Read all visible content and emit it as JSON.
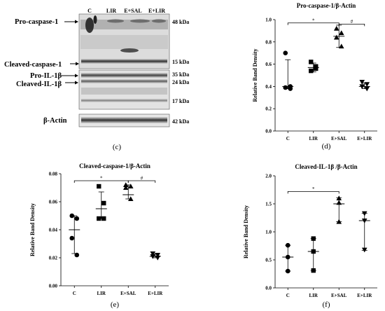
{
  "blot": {
    "lanes": [
      "C",
      "LIR",
      "E+SAL",
      "E+LIR"
    ],
    "labels": {
      "pro_casp": "Pro-caspase-1",
      "cleaved_casp": "Cleaved-caspase-1",
      "pro_il": "Pro-IL-1β",
      "cleaved_il": "Cleaved-IL-1β",
      "actin": "β-Actin"
    },
    "kda": {
      "k48": "48 kDa",
      "k15": "15 kDa",
      "k35": "35 kDa",
      "k24": "24 kDa",
      "k17": "17 kDa",
      "k42": "42 kDa"
    },
    "panel_letter": "(c)"
  },
  "chart_data": [
    {
      "id": "d",
      "type": "scatter",
      "panel_letter": "(d)",
      "title": "Pro-caspase-1/β-Actin",
      "ylabel": "Relative Band Density",
      "categories": [
        "C",
        "LIR",
        "E+SAL",
        "E+LIR"
      ],
      "ylim": [
        0,
        1.0
      ],
      "yticks": [
        "0.0",
        "0.2",
        "0.4",
        "0.6",
        "0.8",
        "1.0"
      ],
      "series": [
        {
          "category": "C",
          "marker": "circle",
          "values": [
            0.7,
            0.4,
            0.39,
            0.38
          ],
          "mean": 0.4,
          "err_low": 0.38,
          "err_high": 0.64
        },
        {
          "category": "LIR",
          "marker": "square",
          "values": [
            0.62,
            0.58,
            0.54,
            0.56
          ],
          "mean": 0.57,
          "err_low": 0.53,
          "err_high": 0.61
        },
        {
          "category": "E+SAL",
          "marker": "triangle-up",
          "values": [
            0.92,
            0.88,
            0.84,
            0.76
          ],
          "mean": 0.85,
          "err_low": 0.75,
          "err_high": 0.95
        },
        {
          "category": "E+LIR",
          "marker": "triangle-down",
          "values": [
            0.44,
            0.42,
            0.4,
            0.38
          ],
          "mean": 0.4,
          "err_low": 0.38,
          "err_high": 0.43
        }
      ],
      "significance": [
        {
          "from": "C",
          "to": "E+SAL",
          "label": "*"
        },
        {
          "from": "E+SAL",
          "to": "E+LIR",
          "label": "#"
        }
      ],
      "sig_y": [
        0.97,
        0.96
      ]
    },
    {
      "id": "e",
      "type": "scatter",
      "panel_letter": "(e)",
      "title": "Cleaved-caspase-1/β-Actin",
      "ylabel": "Relative Band Density",
      "categories": [
        "C",
        "LIR",
        "E+SAL",
        "E+LIR"
      ],
      "ylim": [
        0,
        0.08
      ],
      "yticks": [
        "0.00",
        "0.02",
        "0.04",
        "0.06",
        "0.08"
      ],
      "series": [
        {
          "category": "C",
          "marker": "circle",
          "values": [
            0.05,
            0.048,
            0.034,
            0.022
          ],
          "mean": 0.04,
          "err_low": 0.023,
          "err_high": 0.05
        },
        {
          "category": "LIR",
          "marker": "square",
          "values": [
            0.071,
            0.059,
            0.048,
            0.048
          ],
          "mean": 0.055,
          "err_low": 0.048,
          "err_high": 0.067
        },
        {
          "category": "E+SAL",
          "marker": "triangle-up",
          "values": [
            0.072,
            0.071,
            0.07,
            0.062
          ],
          "mean": 0.065,
          "err_low": 0.062,
          "err_high": 0.072
        },
        {
          "category": "E+LIR",
          "marker": "triangle-down",
          "values": [
            0.023,
            0.022,
            0.021,
            0.02
          ],
          "mean": 0.021,
          "err_low": 0.02,
          "err_high": 0.023
        }
      ],
      "significance": [
        {
          "from": "C",
          "to": "E+SAL",
          "label": "*"
        },
        {
          "from": "E+SAL",
          "to": "E+LIR",
          "label": "#"
        }
      ],
      "sig_y": [
        0.075,
        0.075
      ]
    },
    {
      "id": "f",
      "type": "scatter",
      "panel_letter": "(f)",
      "title": "Cleaved-IL-1β /β-Actin",
      "ylabel": "Relative Band Density",
      "categories": [
        "C",
        "LIR",
        "E+SAL",
        "E+LIR"
      ],
      "ylim": [
        0,
        2.0
      ],
      "yticks": [
        "0.0",
        "0.5",
        "1.0",
        "1.5",
        "2.0"
      ],
      "series": [
        {
          "category": "C",
          "marker": "circle",
          "values": [
            0.76,
            0.55,
            0.3
          ],
          "mean": 0.55,
          "err_low": 0.3,
          "err_high": 0.76
        },
        {
          "category": "LIR",
          "marker": "square",
          "values": [
            0.88,
            0.65,
            0.31
          ],
          "mean": 0.65,
          "err_low": 0.31,
          "err_high": 0.88
        },
        {
          "category": "E+SAL",
          "marker": "triangle-up",
          "values": [
            1.6,
            1.52,
            1.18
          ],
          "mean": 1.5,
          "err_low": 1.18,
          "err_high": 1.61
        },
        {
          "category": "E+LIR",
          "marker": "triangle-down",
          "values": [
            1.33,
            1.2,
            0.68
          ],
          "mean": 1.2,
          "err_low": 0.67,
          "err_high": 1.33
        }
      ],
      "significance": [
        {
          "from": "C",
          "to": "E+SAL",
          "label": "*"
        }
      ],
      "sig_y": [
        1.72
      ]
    }
  ]
}
